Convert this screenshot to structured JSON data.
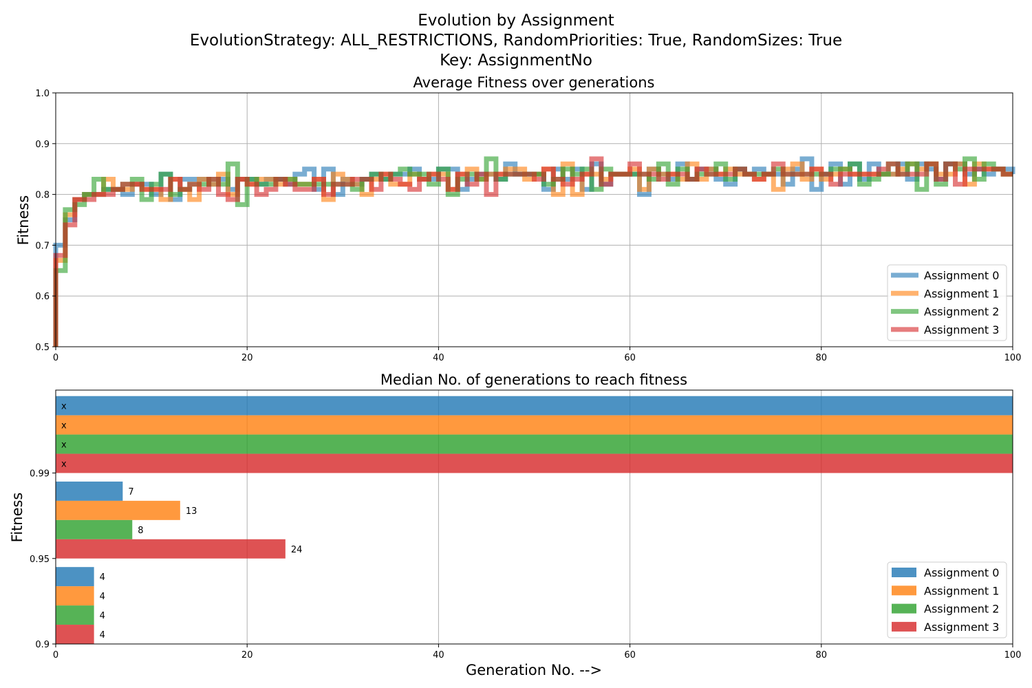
{
  "figure": {
    "title_lines": [
      "Evolution by Assignment",
      "EvolutionStrategy: ALL_RESTRICTIONS, RandomPriorities: True, RandomSizes: True",
      "Key: AssignmentNo"
    ]
  },
  "colors": {
    "Assignment 0": "#1f77b4",
    "Assignment 1": "#ff7f0e",
    "Assignment 2": "#2ca02c",
    "Assignment 3": "#d62728"
  },
  "chart_data": [
    {
      "type": "line",
      "title": "Average Fitness over generations",
      "xlabel": "",
      "ylabel": "Fitness",
      "xlim": [
        0,
        100
      ],
      "ylim": [
        0.5,
        1.0
      ],
      "xticks": [
        "0",
        "20",
        "40",
        "60",
        "80",
        "100"
      ],
      "yticks": [
        "0.5",
        "0.6",
        "0.7",
        "0.8",
        "0.9",
        "1.0"
      ],
      "grid": true,
      "legend_position": "lower-right",
      "step": true,
      "x": [
        0,
        1,
        2,
        3,
        4,
        5,
        6,
        7,
        8,
        9,
        10,
        11,
        12,
        13,
        14,
        15,
        16,
        17,
        18,
        19,
        20,
        21,
        22,
        23,
        24,
        25,
        26,
        27,
        28,
        29,
        30,
        31,
        32,
        33,
        34,
        35,
        36,
        37,
        38,
        39,
        40,
        41,
        42,
        43,
        44,
        45,
        46,
        47,
        48,
        49,
        50,
        51,
        52,
        53,
        54,
        55,
        56,
        57,
        58,
        59,
        60,
        61,
        62,
        63,
        64,
        65,
        66,
        67,
        68,
        69,
        70,
        71,
        72,
        73,
        74,
        75,
        76,
        77,
        78,
        79,
        80,
        81,
        82,
        83,
        84,
        85,
        86,
        87,
        88,
        89,
        90,
        91,
        92,
        93,
        94,
        95,
        96,
        97,
        98,
        99,
        100
      ],
      "series": [
        {
          "name": "Assignment 0",
          "values": [
            0.7,
            0.75,
            0.79,
            0.8,
            0.8,
            0.81,
            0.81,
            0.8,
            0.82,
            0.82,
            0.8,
            0.84,
            0.79,
            0.83,
            0.83,
            0.83,
            0.82,
            0.83,
            0.81,
            0.83,
            0.83,
            0.82,
            0.83,
            0.83,
            0.82,
            0.84,
            0.85,
            0.81,
            0.85,
            0.8,
            0.83,
            0.82,
            0.83,
            0.84,
            0.83,
            0.84,
            0.84,
            0.85,
            0.83,
            0.83,
            0.85,
            0.85,
            0.81,
            0.83,
            0.84,
            0.84,
            0.83,
            0.86,
            0.84,
            0.84,
            0.84,
            0.81,
            0.85,
            0.83,
            0.85,
            0.81,
            0.86,
            0.82,
            0.84,
            0.84,
            0.84,
            0.8,
            0.85,
            0.84,
            0.83,
            0.86,
            0.83,
            0.85,
            0.85,
            0.83,
            0.82,
            0.85,
            0.84,
            0.85,
            0.84,
            0.84,
            0.82,
            0.85,
            0.87,
            0.81,
            0.84,
            0.86,
            0.82,
            0.86,
            0.83,
            0.86,
            0.84,
            0.84,
            0.86,
            0.83,
            0.86,
            0.85,
            0.83,
            0.86,
            0.86,
            0.84,
            0.85,
            0.84,
            0.85,
            0.85,
            0.84
          ]
        },
        {
          "name": "Assignment 1",
          "values": [
            0.67,
            0.76,
            0.79,
            0.8,
            0.8,
            0.83,
            0.81,
            0.81,
            0.82,
            0.81,
            0.81,
            0.79,
            0.83,
            0.81,
            0.79,
            0.83,
            0.82,
            0.84,
            0.8,
            0.83,
            0.82,
            0.83,
            0.83,
            0.82,
            0.83,
            0.82,
            0.82,
            0.83,
            0.79,
            0.84,
            0.83,
            0.82,
            0.8,
            0.83,
            0.84,
            0.82,
            0.82,
            0.84,
            0.83,
            0.84,
            0.84,
            0.81,
            0.84,
            0.85,
            0.83,
            0.84,
            0.84,
            0.85,
            0.85,
            0.83,
            0.84,
            0.85,
            0.8,
            0.86,
            0.8,
            0.84,
            0.84,
            0.83,
            0.84,
            0.84,
            0.85,
            0.81,
            0.85,
            0.84,
            0.84,
            0.83,
            0.86,
            0.83,
            0.85,
            0.84,
            0.85,
            0.84,
            0.84,
            0.83,
            0.84,
            0.81,
            0.85,
            0.86,
            0.83,
            0.85,
            0.83,
            0.84,
            0.85,
            0.84,
            0.84,
            0.84,
            0.84,
            0.84,
            0.85,
            0.86,
            0.85,
            0.86,
            0.84,
            0.84,
            0.86,
            0.82,
            0.86,
            0.85,
            0.85,
            0.84,
            0.84
          ]
        },
        {
          "name": "Assignment 2",
          "values": [
            0.65,
            0.77,
            0.78,
            0.8,
            0.83,
            0.81,
            0.81,
            0.82,
            0.83,
            0.79,
            0.82,
            0.84,
            0.8,
            0.81,
            0.82,
            0.82,
            0.83,
            0.82,
            0.86,
            0.78,
            0.83,
            0.82,
            0.82,
            0.83,
            0.83,
            0.82,
            0.82,
            0.82,
            0.82,
            0.82,
            0.82,
            0.81,
            0.83,
            0.84,
            0.83,
            0.84,
            0.85,
            0.84,
            0.84,
            0.82,
            0.85,
            0.8,
            0.83,
            0.84,
            0.83,
            0.87,
            0.83,
            0.84,
            0.84,
            0.84,
            0.84,
            0.82,
            0.83,
            0.85,
            0.84,
            0.85,
            0.81,
            0.85,
            0.84,
            0.84,
            0.84,
            0.84,
            0.83,
            0.86,
            0.82,
            0.85,
            0.83,
            0.84,
            0.84,
            0.86,
            0.83,
            0.85,
            0.84,
            0.84,
            0.84,
            0.85,
            0.84,
            0.84,
            0.84,
            0.84,
            0.84,
            0.85,
            0.85,
            0.86,
            0.82,
            0.83,
            0.84,
            0.86,
            0.84,
            0.86,
            0.81,
            0.86,
            0.82,
            0.86,
            0.85,
            0.87,
            0.83,
            0.86,
            0.85,
            0.84,
            0.84
          ]
        },
        {
          "name": "Assignment 3",
          "values": [
            0.68,
            0.74,
            0.79,
            0.79,
            0.8,
            0.8,
            0.81,
            0.82,
            0.82,
            0.81,
            0.81,
            0.81,
            0.83,
            0.81,
            0.82,
            0.81,
            0.83,
            0.8,
            0.79,
            0.83,
            0.82,
            0.8,
            0.81,
            0.83,
            0.82,
            0.81,
            0.81,
            0.83,
            0.8,
            0.82,
            0.82,
            0.83,
            0.83,
            0.81,
            0.84,
            0.83,
            0.82,
            0.81,
            0.83,
            0.84,
            0.83,
            0.81,
            0.84,
            0.82,
            0.84,
            0.8,
            0.84,
            0.84,
            0.84,
            0.84,
            0.83,
            0.85,
            0.83,
            0.82,
            0.83,
            0.84,
            0.87,
            0.82,
            0.84,
            0.84,
            0.86,
            0.84,
            0.84,
            0.83,
            0.84,
            0.84,
            0.83,
            0.85,
            0.84,
            0.84,
            0.84,
            0.85,
            0.84,
            0.83,
            0.84,
            0.86,
            0.84,
            0.84,
            0.84,
            0.85,
            0.84,
            0.82,
            0.84,
            0.84,
            0.84,
            0.84,
            0.85,
            0.86,
            0.84,
            0.84,
            0.84,
            0.86,
            0.83,
            0.86,
            0.82,
            0.85,
            0.85,
            0.85,
            0.85,
            0.84,
            0.84
          ]
        }
      ]
    },
    {
      "type": "bar",
      "orientation": "horizontal",
      "title": "Median No. of generations to reach fitness",
      "xlabel": "Generation No. -->",
      "ylabel": "Fitness",
      "xlim": [
        0,
        100
      ],
      "xticks": [
        "0",
        "20",
        "40",
        "60",
        "80",
        "100"
      ],
      "grid": true,
      "legend_position": "lower-right",
      "categories": [
        "0.9",
        "0.95",
        "0.99"
      ],
      "series": [
        {
          "name": "Assignment 0",
          "values": [
            4,
            7,
            100
          ],
          "labels": [
            "4",
            "7",
            "x"
          ]
        },
        {
          "name": "Assignment 1",
          "values": [
            4,
            13,
            100
          ],
          "labels": [
            "4",
            "13",
            "x"
          ]
        },
        {
          "name": "Assignment 2",
          "values": [
            4,
            8,
            100
          ],
          "labels": [
            "4",
            "8",
            "x"
          ]
        },
        {
          "name": "Assignment 3",
          "values": [
            4,
            24,
            100
          ],
          "labels": [
            "4",
            "24",
            "x"
          ]
        }
      ]
    }
  ]
}
